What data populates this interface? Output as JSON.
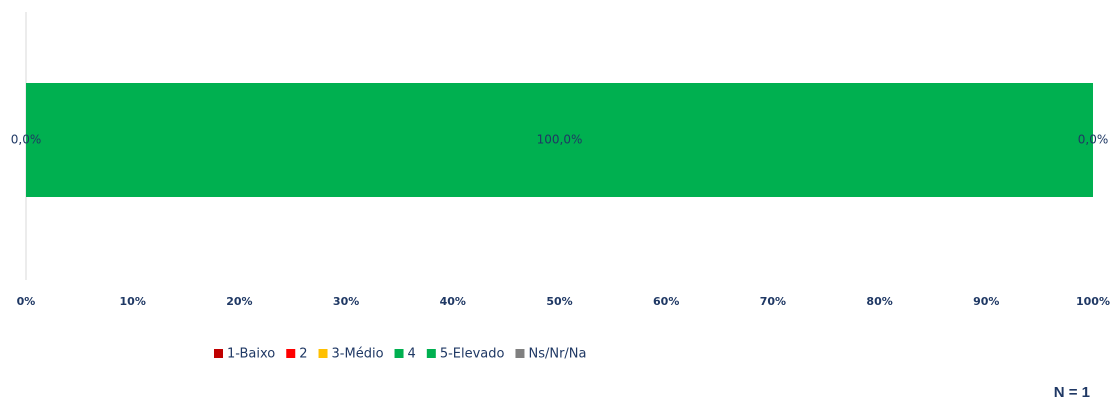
{
  "chart_data": {
    "type": "stacked_bar_horizontal",
    "series": [
      {
        "name": "1-Baixo",
        "color": "#c00000",
        "values": [
          0
        ]
      },
      {
        "name": "2",
        "color": "#ff0000",
        "values": [
          0
        ]
      },
      {
        "name": "3-Médio",
        "color": "#ffc000",
        "values": [
          0
        ]
      },
      {
        "name": "4",
        "color": "#00b050",
        "values": [
          0
        ],
        "value_labels": [
          "0,0%"
        ]
      },
      {
        "name": "5-Elevado",
        "color": "#00b050",
        "values": [
          100
        ],
        "value_labels": [
          "100,0%"
        ]
      },
      {
        "name": "Ns/Nr/Na",
        "color": "#808080",
        "values": [
          0
        ],
        "value_labels": [
          "0,0%"
        ]
      }
    ],
    "xlim": [
      0,
      100
    ],
    "xticks": [
      {
        "value": 0,
        "label": "0%"
      },
      {
        "value": 10,
        "label": "10%"
      },
      {
        "value": 20,
        "label": "20%"
      },
      {
        "value": 30,
        "label": "30%"
      },
      {
        "value": 40,
        "label": "40%"
      },
      {
        "value": 50,
        "label": "50%"
      },
      {
        "value": 60,
        "label": "60%"
      },
      {
        "value": 70,
        "label": "70%"
      },
      {
        "value": 80,
        "label": "80%"
      },
      {
        "value": 90,
        "label": "90%"
      },
      {
        "value": 100,
        "label": "100%"
      }
    ],
    "legend": "bottom",
    "annotation": "N = 1"
  }
}
